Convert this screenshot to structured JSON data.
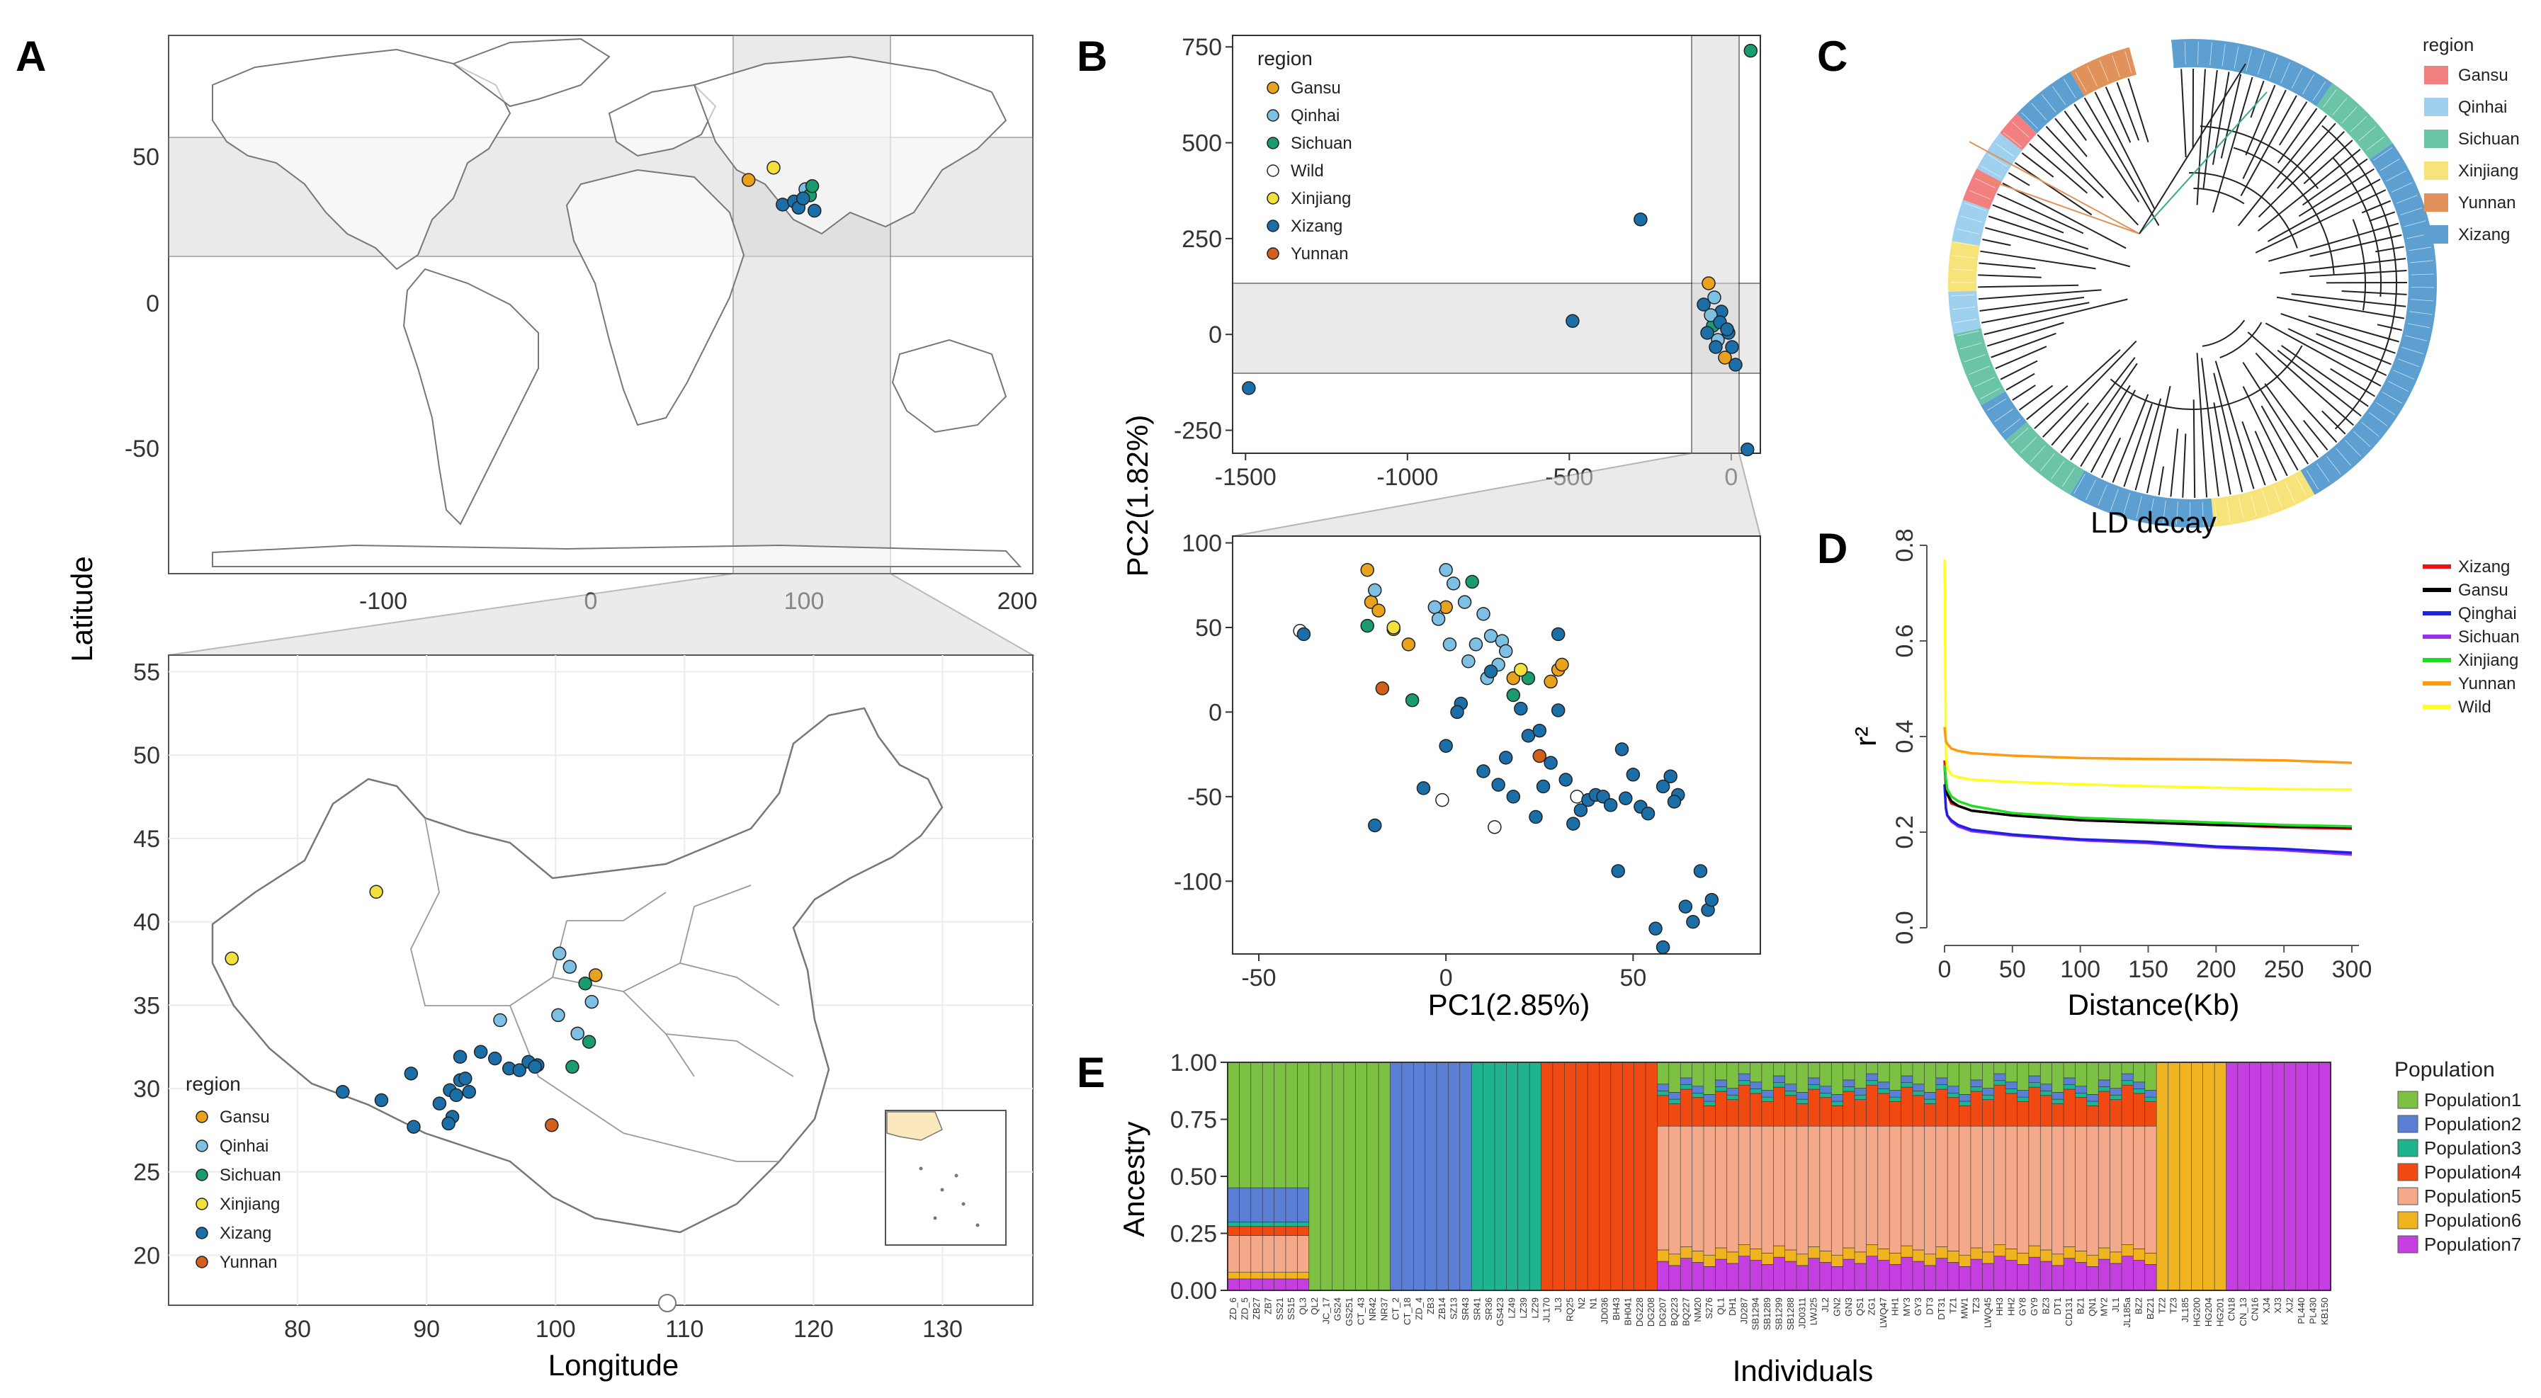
{
  "panels": {
    "A": {
      "letter": "A",
      "ylabel": "Latitude",
      "xlabel": "Longitude",
      "world_x_ticks": [
        -100,
        0,
        100,
        200
      ],
      "world_y_ticks": [
        50,
        0,
        -50
      ],
      "china_x_ticks": [
        80,
        90,
        100,
        110,
        120,
        130
      ],
      "china_y_ticks": [
        55,
        50,
        45,
        40,
        35,
        30,
        25,
        20
      ],
      "legend_title": "region",
      "legend_items": [
        "Gansu",
        "Qinhai",
        "Sichuan",
        "Xinjiang",
        "Xizang",
        "Yunnan"
      ],
      "highlight_box": {
        "lon": [
          65,
          140
        ],
        "lat": [
          16,
          56
        ]
      }
    },
    "B": {
      "letter": "B",
      "ylabel": "PC2(1.82%)",
      "xlabel": "PC1(2.85%)",
      "top_x_ticks": [
        -1500,
        -1000,
        -500,
        0
      ],
      "top_y_ticks": [
        750,
        500,
        250,
        0,
        -250
      ],
      "bottom_x_ticks": [
        -50,
        0,
        50
      ],
      "bottom_y_ticks": [
        100,
        50,
        0,
        -50,
        -100
      ],
      "legend_title": "region",
      "legend_items": [
        "Gansu",
        "Qinhai",
        "Sichuan",
        "Wild",
        "Xinjiang",
        "Xizang",
        "Yunnan"
      ]
    },
    "C": {
      "letter": "C",
      "legend_title": "region",
      "legend_items": [
        "Gansu",
        "Qinhai",
        "Sichuan",
        "Xinjiang",
        "Yunnan",
        "Xizang"
      ]
    },
    "D": {
      "letter": "D",
      "title": "LD decay",
      "ylabel": "r²",
      "xlabel": "Distance(Kb)",
      "legend_items": [
        "Xizang",
        "Gansu",
        "Qinghai",
        "Sichuan",
        "Xinjiang",
        "Yunnan",
        "Wild"
      ]
    },
    "E": {
      "letter": "E",
      "ylabel": "Ancestry",
      "xlabel": "Individuals",
      "legend_title": "Population",
      "legend_items": [
        "Population1",
        "Population2",
        "Population3",
        "Population4",
        "Population5",
        "Population6",
        "Population7"
      ],
      "sample_labels": [
        "ZD_6",
        "ZD_5",
        "ZB27",
        "ZB7",
        "SS21",
        "SS15",
        "QL3",
        "QL2",
        "JC_17",
        "GS24",
        "GS251",
        "CT_43",
        "NR42",
        "NR37",
        "CT_2",
        "CT_18",
        "ZD_4",
        "ZB3",
        "ZB14",
        "SZ13",
        "SR43",
        "SR41",
        "SR36",
        "GS423",
        "LZ49",
        "LZ39",
        "LZ29",
        "JL170",
        "JL3",
        "RQ25",
        "N2",
        "N1",
        "JD036",
        "BH43",
        "BH041",
        "DG228",
        "DG208",
        "DG207",
        "BQ223",
        "BQ227",
        "NM20",
        "S276",
        "QL1",
        "DH1",
        "JD287",
        "SB1294",
        "SB1289",
        "SB1299",
        "SB1288",
        "JD0311",
        "LWJ25",
        "JL2",
        "GN2",
        "GN3",
        "QS1",
        "ZG1",
        "LWQ47",
        "HH1",
        "MY3",
        "GY3",
        "DT3",
        "DT31",
        "TZ1",
        "MW1",
        "TZ3",
        "LWQ45",
        "HH3",
        "HH2",
        "GY8",
        "GY9",
        "BZ3",
        "DT1",
        "CD131",
        "BZ1",
        "QN1",
        "MY2",
        "JL1",
        "JL185a",
        "BZ2",
        "BZ21",
        "TZ2",
        "TZ3",
        "JL185",
        "HG200",
        "HG204",
        "HG201",
        "CN18",
        "CN_13",
        "CN16",
        "XJ4",
        "XJ3",
        "XJ2",
        "PL440",
        "PL430",
        "KB150"
      ]
    }
  },
  "chart_data": [
    {
      "type": "scatter",
      "panel": "A-world",
      "x": [
        86,
        75,
        100,
        102,
        90,
        95,
        97,
        103,
        104,
        99
      ],
      "y": [
        42,
        38,
        35,
        33,
        30,
        31,
        29,
        36,
        28,
        32
      ],
      "xlim": [
        -180,
        200
      ],
      "ylim": [
        -90,
        85
      ]
    },
    {
      "type": "scatter",
      "panel": "A-china",
      "series": [
        {
          "name": "Gansu",
          "x": [
            103.1
          ],
          "y": [
            36.8
          ]
        },
        {
          "name": "Qinhai",
          "x": [
            100.3,
            101.1,
            102.8,
            95.7,
            100.2,
            101.7
          ],
          "y": [
            38.1,
            37.3,
            35.2,
            34.1,
            34.4,
            33.3
          ]
        },
        {
          "name": "Sichuan",
          "x": [
            102.3,
            102.6,
            101.3
          ],
          "y": [
            36.3,
            32.8,
            31.3
          ]
        },
        {
          "name": "Xinjiang",
          "x": [
            86.1,
            74.9
          ],
          "y": [
            41.8,
            37.8
          ]
        },
        {
          "name": "Xizang",
          "x": [
            83.5,
            86.5,
            88.8,
            89.0,
            91.0,
            91.8,
            92.3,
            92.0,
            91.7,
            92.6,
            93.3,
            93.0,
            94.2,
            95.3,
            96.4,
            97.2,
            97.9,
            98.6,
            98.4,
            92.6
          ],
          "y": [
            29.8,
            29.3,
            30.9,
            27.7,
            29.1,
            29.9,
            29.6,
            28.3,
            27.9,
            30.5,
            29.8,
            30.6,
            32.2,
            31.8,
            31.2,
            31.1,
            31.6,
            31.4,
            31.3,
            31.9
          ]
        },
        {
          "name": "Yunnan",
          "x": [
            99.7
          ],
          "y": [
            27.8
          ]
        }
      ],
      "xlim": [
        70,
        137
      ],
      "ylim": [
        17,
        56
      ]
    },
    {
      "type": "scatter",
      "panel": "B-top",
      "series": [
        {
          "name": "Sichuan",
          "x": [
            60
          ],
          "y": [
            740
          ]
        },
        {
          "name": "Xizang",
          "x": [
            -280,
            -1490,
            -490,
            50
          ],
          "y": [
            300,
            -140,
            35,
            -300
          ]
        }
      ],
      "xlim": [
        -1540,
        90
      ],
      "ylim": [
        -310,
        780
      ],
      "xlabel": "",
      "ylabel": ""
    },
    {
      "type": "scatter",
      "panel": "B-bottom",
      "series": [
        {
          "name": "Gansu",
          "x": [
            -21,
            -20,
            -18,
            -14,
            0,
            28,
            30,
            31,
            -10,
            18
          ],
          "y": [
            84,
            65,
            60,
            49,
            62,
            18,
            25,
            28,
            40,
            20
          ]
        },
        {
          "name": "Qinhai",
          "x": [
            -19,
            0,
            2,
            5,
            10,
            12,
            8,
            -3,
            -2,
            1,
            6,
            11,
            15,
            14,
            16
          ],
          "y": [
            72,
            84,
            76,
            65,
            58,
            45,
            40,
            62,
            55,
            40,
            30,
            20,
            42,
            28,
            36
          ]
        },
        {
          "name": "Sichuan",
          "x": [
            -21,
            -9,
            7,
            18,
            22
          ],
          "y": [
            51,
            7,
            77,
            10,
            20
          ]
        },
        {
          "name": "Wild",
          "x": [
            -39,
            -1,
            13,
            35
          ],
          "y": [
            48,
            -52,
            -68,
            -50
          ]
        },
        {
          "name": "Xinjiang",
          "x": [
            -14,
            20
          ],
          "y": [
            50,
            25
          ]
        },
        {
          "name": "Xizang",
          "x": [
            -38,
            -19,
            -6,
            0,
            4,
            10,
            14,
            16,
            18,
            20,
            22,
            24,
            26,
            28,
            30,
            32,
            34,
            36,
            38,
            40,
            42,
            44,
            46,
            48,
            50,
            52,
            54,
            56,
            58,
            60,
            62,
            64,
            66,
            68,
            70,
            71,
            58,
            61,
            47,
            30,
            25,
            12,
            3
          ],
          "y": [
            46,
            -67,
            -45,
            -20,
            5,
            -35,
            -43,
            -27,
            -50,
            2,
            -14,
            -62,
            -44,
            -30,
            46,
            -40,
            -66,
            -58,
            -52,
            -49,
            -50,
            -55,
            -94,
            -51,
            -37,
            -56,
            -60,
            -128,
            -139,
            -38,
            -49,
            -115,
            -124,
            -94,
            -117,
            -111,
            -44,
            -53,
            -22,
            1,
            -11,
            24,
            0
          ]
        },
        {
          "name": "Yunnan",
          "x": [
            -17,
            25
          ],
          "y": [
            14,
            -26
          ]
        }
      ],
      "xlim": [
        -57,
        84
      ],
      "ylim": [
        -143,
        104
      ]
    },
    {
      "type": "line",
      "panel": "D",
      "x": [
        0,
        1,
        2,
        5,
        10,
        20,
        50,
        100,
        150,
        200,
        250,
        300
      ],
      "series": [
        {
          "name": "Xizang",
          "values": [
            0.35,
            0.3,
            0.28,
            0.26,
            0.255,
            0.245,
            0.235,
            0.225,
            0.22,
            0.215,
            0.21,
            0.207
          ]
        },
        {
          "name": "Gansu",
          "values": [
            0.34,
            0.3,
            0.28,
            0.265,
            0.255,
            0.245,
            0.235,
            0.225,
            0.22,
            0.215,
            0.212,
            0.21
          ]
        },
        {
          "name": "Qinghai",
          "values": [
            0.3,
            0.25,
            0.235,
            0.225,
            0.215,
            0.205,
            0.195,
            0.185,
            0.18,
            0.17,
            0.165,
            0.157
          ]
        },
        {
          "name": "Sichuan",
          "values": [
            0.3,
            0.25,
            0.235,
            0.222,
            0.212,
            0.202,
            0.193,
            0.183,
            0.177,
            0.168,
            0.162,
            0.153
          ]
        },
        {
          "name": "Xinjiang",
          "values": [
            0.34,
            0.31,
            0.29,
            0.275,
            0.265,
            0.255,
            0.24,
            0.23,
            0.225,
            0.22,
            0.215,
            0.212
          ]
        },
        {
          "name": "Yunnan",
          "values": [
            0.42,
            0.39,
            0.385,
            0.375,
            0.37,
            0.365,
            0.36,
            0.355,
            0.353,
            0.352,
            0.35,
            0.345
          ]
        },
        {
          "name": "Wild",
          "values": [
            0.77,
            0.36,
            0.335,
            0.32,
            0.315,
            0.31,
            0.305,
            0.3,
            0.296,
            0.293,
            0.29,
            0.289
          ]
        }
      ],
      "xlim": [
        0,
        300
      ],
      "ylim": [
        0,
        0.8
      ],
      "x_ticks": [
        0,
        50,
        100,
        150,
        200,
        250,
        300
      ],
      "y_ticks": [
        0.0,
        0.2,
        0.4,
        0.6,
        0.8
      ]
    },
    {
      "type": "bar",
      "panel": "E",
      "stacked": true,
      "y_ticks": [
        1.0,
        0.75,
        0.5,
        0.25,
        0.0
      ],
      "population_colors": [
        "#7cc044",
        "#5b7fd4",
        "#1fb38f",
        "#f04a12",
        "#f4a98a",
        "#f0b420",
        "#c43ee0"
      ]
    }
  ],
  "colors": {
    "Gansu": "#e8a21c",
    "Qinhai": "#7ec0e4",
    "Sichuan": "#1a9c6e",
    "Wild": "#ffffff",
    "Xinjiang": "#f2e13a",
    "Xizang": "#1a6fa8",
    "Yunnan": "#d2601c",
    "C_Gansu": "#f28080",
    "C_Qinhai": "#9fd0ee",
    "C_Sichuan": "#6cc4a8",
    "C_Xinjiang": "#f6e47a",
    "C_Yunnan": "#e0925a",
    "C_Xizang": "#5c9fd0",
    "D_Xizang": "#ee1111",
    "D_Gansu": "#000000",
    "D_Qinghai": "#2020e0",
    "D_Sichuan": "#9b30f0",
    "D_Xinjiang": "#22dd22",
    "D_Yunnan": "#ff9a10",
    "D_Wild": "#ffff22"
  }
}
